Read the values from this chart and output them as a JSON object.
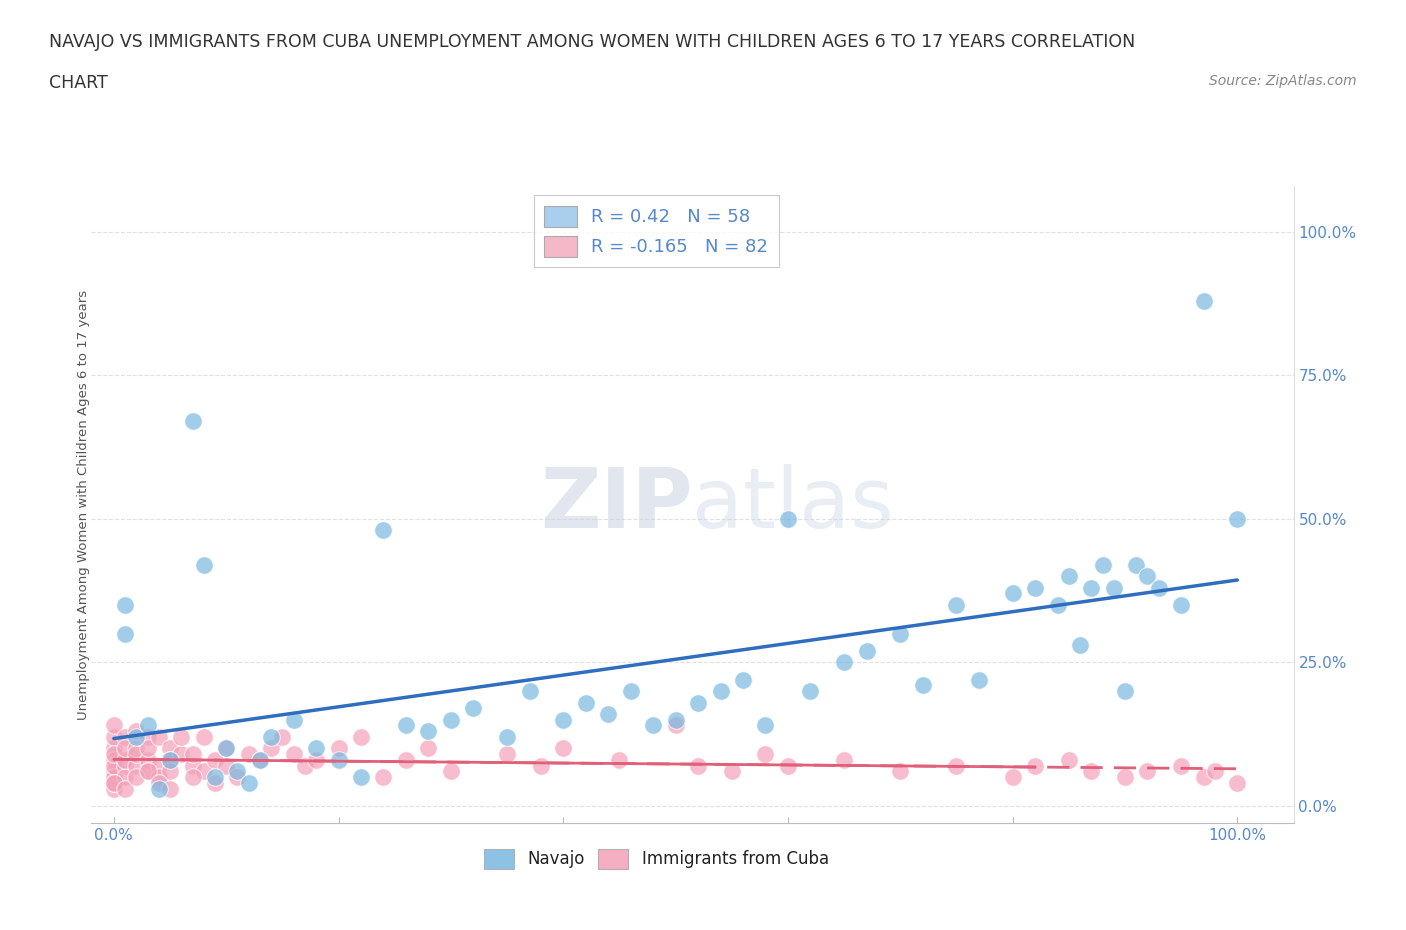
{
  "title_line1": "NAVAJO VS IMMIGRANTS FROM CUBA UNEMPLOYMENT AMONG WOMEN WITH CHILDREN AGES 6 TO 17 YEARS CORRELATION",
  "title_line2": "CHART",
  "source_text": "Source: ZipAtlas.com",
  "ylabel": "Unemployment Among Women with Children Ages 6 to 17 years",
  "xlim": [
    -0.02,
    1.05
  ],
  "ylim": [
    -0.03,
    1.08
  ],
  "y_tick_labels": [
    "0.0%",
    "25.0%",
    "50.0%",
    "75.0%",
    "100.0%"
  ],
  "y_tick_positions": [
    0.0,
    0.25,
    0.5,
    0.75,
    1.0
  ],
  "navajo_R": 0.42,
  "navajo_N": 58,
  "cuba_R": -0.165,
  "cuba_N": 82,
  "navajo_color": "#7ab8e0",
  "cuba_color": "#f4a0b8",
  "navajo_line_color": "#2f6dbf",
  "cuba_line_color": "#e0607a",
  "legend_box_navajo": "#aacfee",
  "legend_box_cuba": "#f5b8c8",
  "watermark_color": "#d0d8e8",
  "background_color": "#ffffff",
  "grid_color": "#e0e0e0",
  "tick_color": "#5588cc",
  "navajo_x": [
    0.01,
    0.01,
    0.02,
    0.03,
    0.04,
    0.05,
    0.07,
    0.08,
    0.09,
    0.1,
    0.11,
    0.12,
    0.13,
    0.14,
    0.16,
    0.18,
    0.2,
    0.22,
    0.24,
    0.26,
    0.28,
    0.3,
    0.32,
    0.35,
    0.37,
    0.4,
    0.42,
    0.44,
    0.46,
    0.48,
    0.5,
    0.52,
    0.54,
    0.56,
    0.58,
    0.6,
    0.62,
    0.65,
    0.67,
    0.7,
    0.72,
    0.75,
    0.77,
    0.8,
    0.82,
    0.84,
    0.85,
    0.86,
    0.87,
    0.88,
    0.89,
    0.9,
    0.91,
    0.92,
    0.93,
    0.95,
    0.97,
    1.0
  ],
  "navajo_y": [
    0.35,
    0.3,
    0.12,
    0.14,
    0.03,
    0.08,
    0.67,
    0.42,
    0.05,
    0.1,
    0.06,
    0.04,
    0.08,
    0.12,
    0.15,
    0.1,
    0.08,
    0.05,
    0.48,
    0.14,
    0.13,
    0.15,
    0.17,
    0.12,
    0.2,
    0.15,
    0.18,
    0.16,
    0.2,
    0.14,
    0.15,
    0.18,
    0.2,
    0.22,
    0.14,
    0.5,
    0.2,
    0.25,
    0.27,
    0.3,
    0.21,
    0.35,
    0.22,
    0.37,
    0.38,
    0.35,
    0.4,
    0.28,
    0.38,
    0.42,
    0.38,
    0.2,
    0.42,
    0.4,
    0.38,
    0.35,
    0.88,
    0.5
  ],
  "cuba_x": [
    0.0,
    0.0,
    0.0,
    0.0,
    0.0,
    0.0,
    0.0,
    0.0,
    0.0,
    0.0,
    0.01,
    0.01,
    0.01,
    0.01,
    0.01,
    0.02,
    0.02,
    0.02,
    0.02,
    0.03,
    0.03,
    0.03,
    0.03,
    0.04,
    0.04,
    0.04,
    0.05,
    0.05,
    0.05,
    0.06,
    0.06,
    0.07,
    0.07,
    0.08,
    0.08,
    0.09,
    0.1,
    0.1,
    0.11,
    0.12,
    0.13,
    0.14,
    0.15,
    0.16,
    0.17,
    0.18,
    0.2,
    0.22,
    0.24,
    0.26,
    0.28,
    0.3,
    0.35,
    0.38,
    0.4,
    0.45,
    0.5,
    0.52,
    0.55,
    0.58,
    0.6,
    0.65,
    0.7,
    0.75,
    0.8,
    0.82,
    0.85,
    0.87,
    0.9,
    0.92,
    0.95,
    0.97,
    0.98,
    1.0,
    0.0,
    0.01,
    0.02,
    0.03,
    0.04,
    0.05,
    0.07,
    0.09
  ],
  "cuba_y": [
    0.1,
    0.08,
    0.12,
    0.14,
    0.06,
    0.05,
    0.03,
    0.07,
    0.04,
    0.09,
    0.07,
    0.12,
    0.05,
    0.08,
    0.1,
    0.1,
    0.07,
    0.13,
    0.09,
    0.08,
    0.12,
    0.06,
    0.1,
    0.07,
    0.12,
    0.05,
    0.1,
    0.08,
    0.06,
    0.09,
    0.12,
    0.07,
    0.09,
    0.06,
    0.12,
    0.08,
    0.07,
    0.1,
    0.05,
    0.09,
    0.08,
    0.1,
    0.12,
    0.09,
    0.07,
    0.08,
    0.1,
    0.12,
    0.05,
    0.08,
    0.1,
    0.06,
    0.09,
    0.07,
    0.1,
    0.08,
    0.14,
    0.07,
    0.06,
    0.09,
    0.07,
    0.08,
    0.06,
    0.07,
    0.05,
    0.07,
    0.08,
    0.06,
    0.05,
    0.06,
    0.07,
    0.05,
    0.06,
    0.04,
    0.04,
    0.03,
    0.05,
    0.06,
    0.04,
    0.03,
    0.05,
    0.04
  ]
}
